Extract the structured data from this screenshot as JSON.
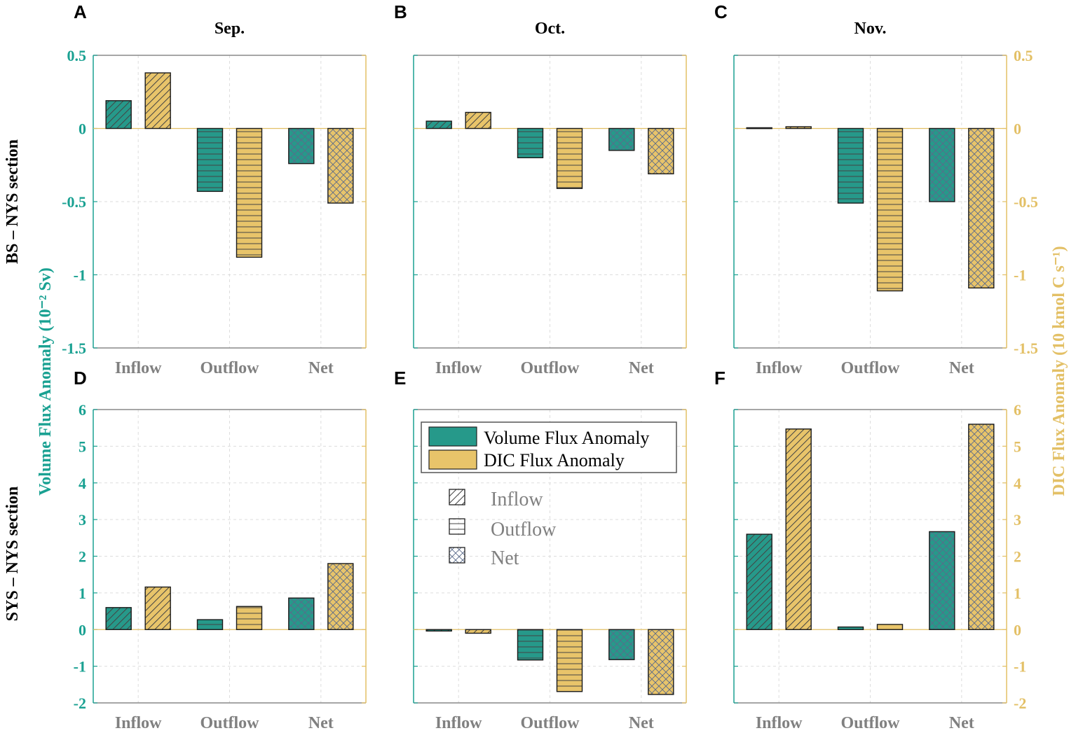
{
  "colors": {
    "volume": "#26998a",
    "dic": "#e8c46a",
    "volume_axis": "#1aa192",
    "dic_axis": "#e3c066",
    "category_text": "#808080",
    "grid": "#dddddd"
  },
  "row_labels": [
    "BS – NYS section",
    "SYS – NYS section"
  ],
  "left_axis_title": "Volume Flux Anomaly (10⁻² Sv)",
  "right_axis_title": "DIC Flux Anomaly (10 kmol C s⁻¹)",
  "legend": {
    "series": [
      "Volume Flux Anomaly",
      "DIC Flux Anomaly"
    ],
    "patterns": [
      "Inflow",
      "Outflow",
      "Net"
    ]
  },
  "chart_data": [
    {
      "type": "bar",
      "panel": "A",
      "title": "Sep.",
      "categories": [
        "Inflow",
        "Outflow",
        "Net"
      ],
      "series": [
        {
          "name": "Volume Flux Anomaly",
          "values": [
            0.19,
            -0.43,
            -0.24
          ]
        },
        {
          "name": "DIC Flux Anomaly",
          "values": [
            0.38,
            -0.88,
            -0.51
          ]
        }
      ],
      "ylim": [
        -1.5,
        0.5
      ],
      "yticks": [
        "0.5",
        "0",
        "-0.5",
        "-1",
        "-1.5"
      ]
    },
    {
      "type": "bar",
      "panel": "B",
      "title": "Oct.",
      "categories": [
        "Inflow",
        "Outflow",
        "Net"
      ],
      "series": [
        {
          "name": "Volume Flux Anomaly",
          "values": [
            0.05,
            -0.2,
            -0.15
          ]
        },
        {
          "name": "DIC Flux Anomaly",
          "values": [
            0.11,
            -0.41,
            -0.31
          ]
        }
      ],
      "ylim": [
        -1.5,
        0.5
      ]
    },
    {
      "type": "bar",
      "panel": "C",
      "title": "Nov.",
      "categories": [
        "Inflow",
        "Outflow",
        "Net"
      ],
      "series": [
        {
          "name": "Volume Flux Anomaly",
          "values": [
            0.005,
            -0.51,
            -0.5
          ]
        },
        {
          "name": "DIC Flux Anomaly",
          "values": [
            0.012,
            -1.11,
            -1.09
          ]
        }
      ],
      "ylim": [
        -1.5,
        0.5
      ],
      "yticks": [
        "0.5",
        "0",
        "-0.5",
        "-1",
        "-1.5"
      ]
    },
    {
      "type": "bar",
      "panel": "D",
      "title": "",
      "categories": [
        "Inflow",
        "Outflow",
        "Net"
      ],
      "series": [
        {
          "name": "Volume Flux Anomaly",
          "values": [
            0.6,
            0.27,
            0.86
          ]
        },
        {
          "name": "DIC Flux Anomaly",
          "values": [
            1.16,
            0.63,
            1.8
          ]
        }
      ],
      "ylim": [
        -2,
        6
      ],
      "yticks": [
        "6",
        "5",
        "4",
        "3",
        "2",
        "1",
        "0",
        "-1",
        "-2"
      ]
    },
    {
      "type": "bar",
      "panel": "E",
      "title": "",
      "categories": [
        "Inflow",
        "Outflow",
        "Net"
      ],
      "series": [
        {
          "name": "Volume Flux Anomaly",
          "values": [
            -0.04,
            -0.83,
            -0.82
          ]
        },
        {
          "name": "DIC Flux Anomaly",
          "values": [
            -0.1,
            -1.69,
            -1.77
          ]
        }
      ],
      "ylim": [
        -2,
        6
      ]
    },
    {
      "type": "bar",
      "panel": "F",
      "title": "",
      "categories": [
        "Inflow",
        "Outflow",
        "Net"
      ],
      "series": [
        {
          "name": "Volume Flux Anomaly",
          "values": [
            2.6,
            0.07,
            2.67
          ]
        },
        {
          "name": "DIC Flux Anomaly",
          "values": [
            5.47,
            0.14,
            5.6
          ]
        }
      ],
      "ylim": [
        -2,
        6
      ],
      "yticks": [
        "6",
        "5",
        "4",
        "3",
        "2",
        "1",
        "0",
        "-1",
        "-2"
      ]
    }
  ]
}
